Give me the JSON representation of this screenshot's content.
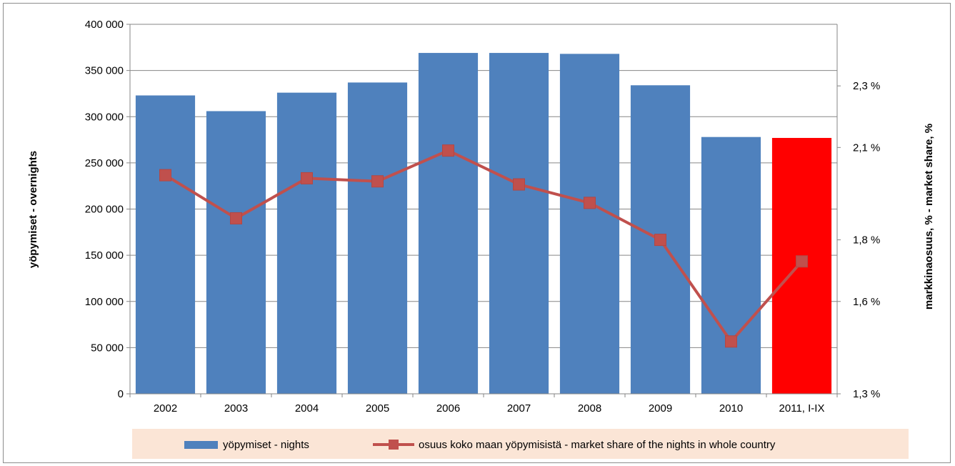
{
  "chart_data": {
    "type": "bar",
    "categories": [
      "2002",
      "2003",
      "2004",
      "2005",
      "2006",
      "2007",
      "2008",
      "2009",
      "2010",
      "2011, I-IX"
    ],
    "series": [
      {
        "name": "yöpymiset - nights",
        "axis": "left",
        "type": "bar",
        "color": "#4f81bd",
        "highlight_color": "#ff0000",
        "highlight_index": 9,
        "values": [
          323000,
          306000,
          326000,
          337000,
          369000,
          369000,
          368000,
          334000,
          278000,
          277000
        ]
      },
      {
        "name": "osuus koko maan yöpymisistä - market share of the nights in whole country",
        "axis": "right",
        "type": "line",
        "color": "#c0504d",
        "values": [
          2.01,
          1.87,
          2.0,
          1.99,
          2.09,
          1.98,
          1.92,
          1.8,
          1.47,
          1.73
        ]
      }
    ],
    "ylabel": "yöpymiset - overnights",
    "y2label": "markkinaosuus, % - market share, %",
    "ylim": [
      0,
      400000
    ],
    "y_ticks": [
      0,
      50000,
      100000,
      150000,
      200000,
      250000,
      300000,
      350000,
      400000
    ],
    "y_tick_labels": [
      "0",
      "50 000",
      "100 000",
      "150 000",
      "200 000",
      "250 000",
      "300 000",
      "350 000",
      "400 000"
    ],
    "y2lim": [
      1.3,
      2.5
    ],
    "y2_ticks": [
      1.3,
      1.6,
      1.8,
      2.1,
      2.3
    ],
    "y2_tick_labels": [
      "1,3 %",
      "1,6 %",
      "1,8 %",
      "2,1 %",
      "2,3 %"
    ],
    "grid": true,
    "legend_position": "bottom",
    "legend_background": "#fbe5d6"
  }
}
